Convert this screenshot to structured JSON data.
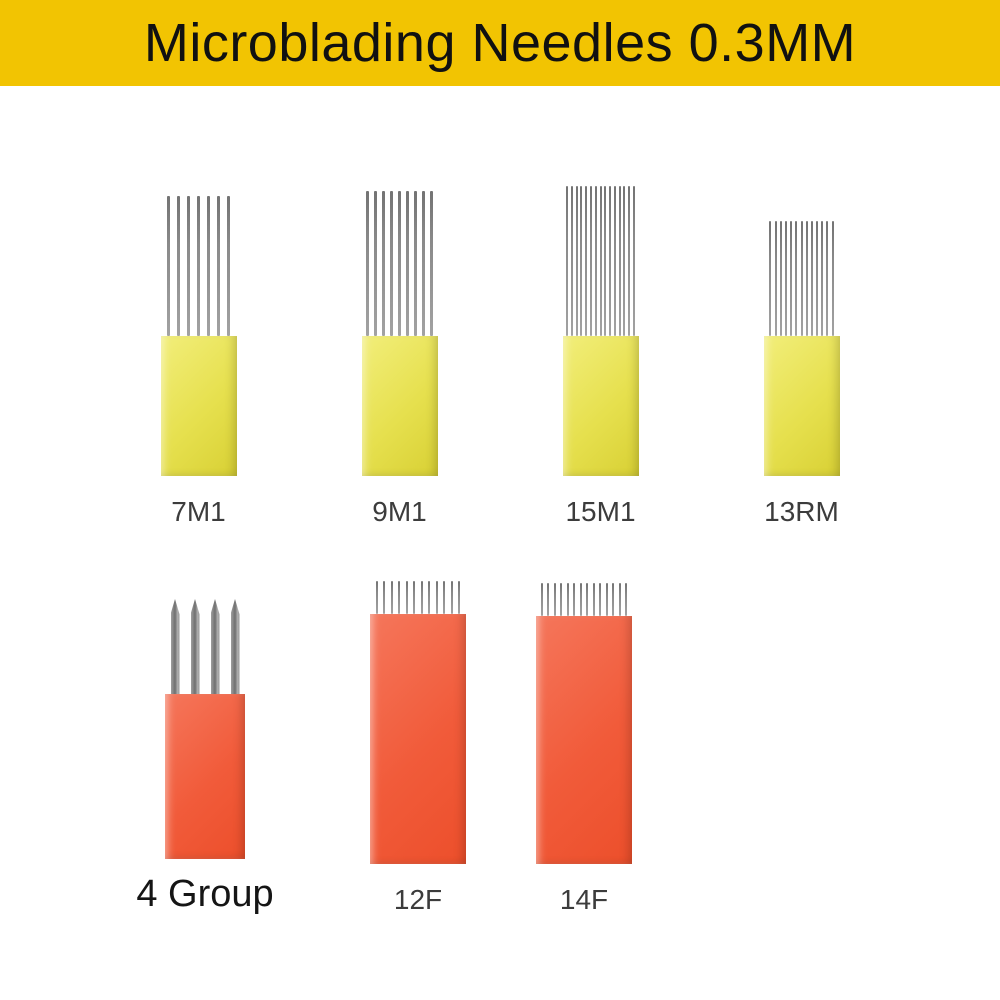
{
  "banner": {
    "title": "Microblading Needles 0.3MM",
    "bg_color": "#f2c402",
    "text_color": "#111111"
  },
  "colors": {
    "needle": "#8a8a8a",
    "yellow_body_start": "#f2ee7a",
    "yellow_body_end": "#d8d034",
    "orange_body_start": "#f5765b",
    "orange_body_end": "#ec4f2b",
    "label_color": "#3c3c3c"
  },
  "top_row": {
    "items": [
      {
        "label": "7M1",
        "needle_count": 7,
        "variant": "flat-yellow"
      },
      {
        "label": "9M1",
        "needle_count": 9,
        "variant": "flat-yellow"
      },
      {
        "label": "15M1",
        "needle_count": 15,
        "variant": "flat-yellow"
      },
      {
        "label": "13RM",
        "needle_count": 13,
        "variant": "round-yellow"
      }
    ]
  },
  "bottom_row": {
    "items": [
      {
        "label": "4 Group",
        "needle_count": 4,
        "variant": "group-orange"
      },
      {
        "label": "12F",
        "needle_count": 12,
        "variant": "flat-orange"
      },
      {
        "label": "14F",
        "needle_count": 14,
        "variant": "flat-orange"
      }
    ]
  }
}
